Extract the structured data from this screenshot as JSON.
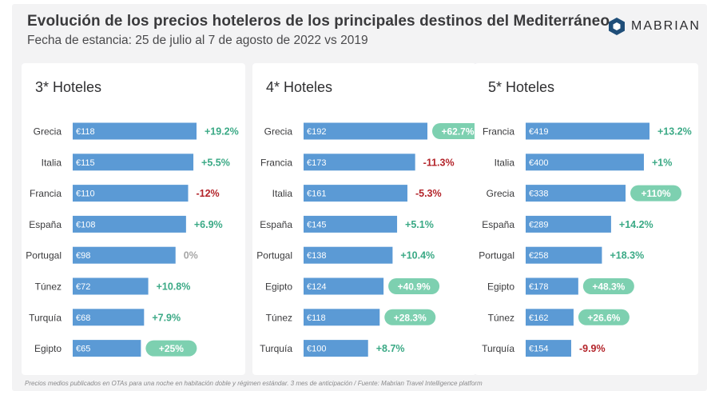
{
  "header": {
    "title": "Evolución de los precios hoteleros de los principales destinos del Mediterráneo",
    "subtitle": "Fecha de estancia: 25 de julio al 7 de agosto de 2022 vs 2019",
    "logo_text": "MABRIAN"
  },
  "footnote": "Precios medios publicados en OTAs para una noche en habitación doble y régimen estándar. 3 mes de anticipación / Fuente: Mabrian Travel Intelligence platform",
  "colors": {
    "bar": "#5b9ad5",
    "positive": "#3aa985",
    "negative": "#b3242a",
    "neutral": "#a6a6a6",
    "pill": "#7dd0b0",
    "logo": "#1f4e79"
  },
  "chart_data": [
    {
      "type": "bar",
      "orientation": "horizontal",
      "title": "3* Hoteles",
      "categories": [
        "Grecia",
        "Italia",
        "Francia",
        "España",
        "Portugal",
        "Túnez",
        "Turquía",
        "Egipto"
      ],
      "values": [
        118,
        115,
        110,
        108,
        98,
        72,
        68,
        65
      ],
      "value_labels": [
        "€118",
        "€115",
        "€110",
        "€108",
        "€98",
        "€72",
        "€68",
        "€65"
      ],
      "change_labels": [
        "+19.2%",
        "+5.5%",
        "-12%",
        "+6.9%",
        "0%",
        "+10.8%",
        "+7.9%",
        "+25%"
      ],
      "highlighted": [
        false,
        false,
        false,
        false,
        false,
        false,
        false,
        true
      ],
      "xlim": [
        0,
        118
      ]
    },
    {
      "type": "bar",
      "orientation": "horizontal",
      "title": "4* Hoteles",
      "categories": [
        "Grecia",
        "Francia",
        "Italia",
        "España",
        "Portugal",
        "Egipto",
        "Túnez",
        "Turquía"
      ],
      "values": [
        192,
        173,
        161,
        145,
        138,
        124,
        118,
        100
      ],
      "value_labels": [
        "€192",
        "€173",
        "€161",
        "€145",
        "€138",
        "€124",
        "€118",
        "€100"
      ],
      "change_labels": [
        "+62.7%",
        "-11.3%",
        "-5.3%",
        "+5.1%",
        "+10.4%",
        "+40.9%",
        "+28.3%",
        "+8.7%"
      ],
      "highlighted": [
        true,
        false,
        false,
        false,
        false,
        true,
        true,
        false
      ],
      "xlim": [
        0,
        192
      ]
    },
    {
      "type": "bar",
      "orientation": "horizontal",
      "title": "5* Hoteles",
      "categories": [
        "Francia",
        "Italia",
        "Grecia",
        "España",
        "Portugal",
        "Egipto",
        "Túnez",
        "Turquía"
      ],
      "values": [
        419,
        400,
        338,
        289,
        258,
        178,
        162,
        154
      ],
      "value_labels": [
        "€419",
        "€400",
        "€338",
        "€289",
        "€258",
        "€178",
        "€162",
        "€154"
      ],
      "change_labels": [
        "+13.2%",
        "+1%",
        "+110%",
        "+14.2%",
        "+18.3%",
        "+48.3%",
        "+26.6%",
        "-9.9%"
      ],
      "highlighted": [
        false,
        false,
        true,
        false,
        false,
        true,
        true,
        false
      ],
      "xlim": [
        0,
        419
      ]
    }
  ]
}
